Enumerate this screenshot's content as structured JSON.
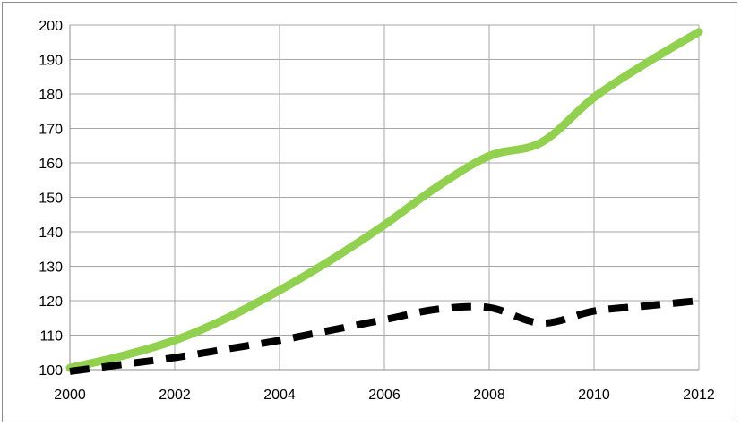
{
  "chart_data": {
    "type": "line",
    "title": "",
    "xlabel": "",
    "ylabel": "",
    "xlim": [
      2000,
      2012
    ],
    "ylim": [
      100,
      200
    ],
    "x_ticks": [
      "2000",
      "2002",
      "2004",
      "2006",
      "2008",
      "2010",
      "2012"
    ],
    "y_ticks": [
      "100",
      "110",
      "120",
      "130",
      "140",
      "150",
      "160",
      "170",
      "180",
      "190",
      "200"
    ],
    "grid": true,
    "legend": "none",
    "series": [
      {
        "color": "#92d050",
        "style": "solid",
        "x": [
          2000,
          2001,
          2002,
          2003,
          2004,
          2005,
          2006,
          2007,
          2008,
          2009,
          2010,
          2011,
          2012
        ],
        "values": [
          100.5,
          104,
          108.5,
          115,
          123,
          132,
          142,
          153,
          162,
          166,
          179,
          189,
          198
        ]
      },
      {
        "color": "#000000",
        "style": "dashed",
        "x": [
          2000,
          2001,
          2002,
          2003,
          2004,
          2005,
          2006,
          2007,
          2008,
          2009,
          2010,
          2011,
          2012
        ],
        "values": [
          99.5,
          101.5,
          103.5,
          106,
          108.5,
          111.5,
          114.5,
          117.5,
          118,
          113.5,
          117,
          118.5,
          120
        ]
      }
    ]
  }
}
